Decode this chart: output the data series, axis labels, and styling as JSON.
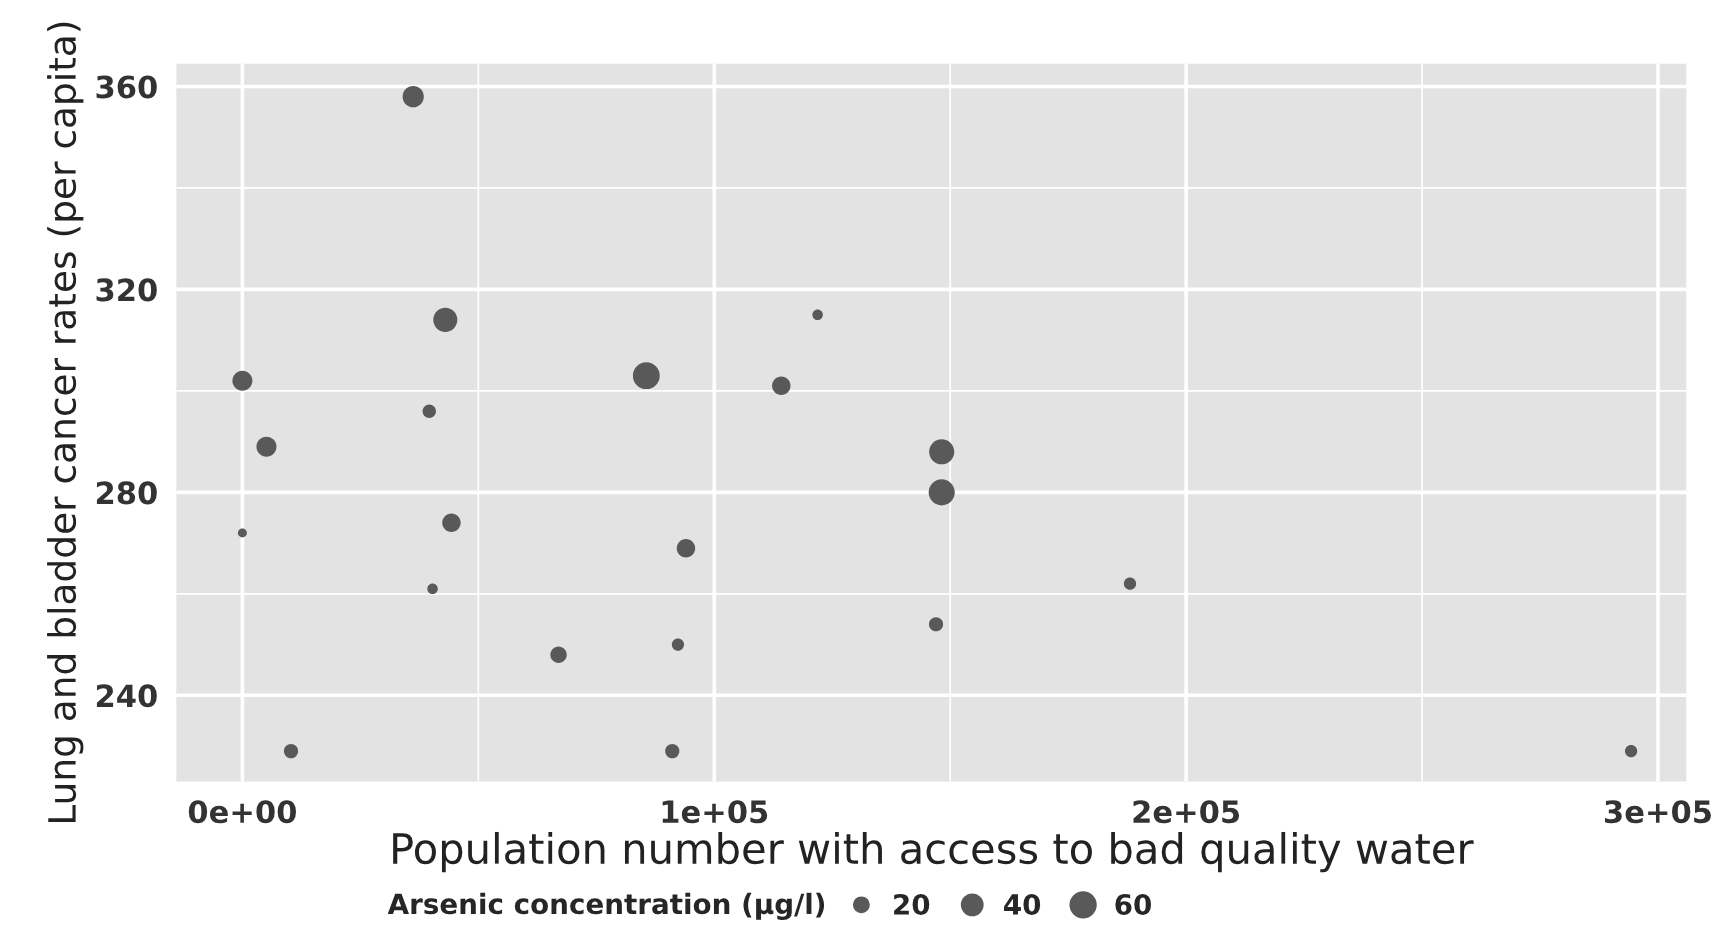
{
  "chart_data": {
    "type": "bubble",
    "xlabel": "Population number with access to bad quality water",
    "ylabel": "Lung and bladder cancer rates (per capita)",
    "legend_title": "Arsenic concentration (µg/l)",
    "x": [
      36200,
      43000,
      0,
      5100,
      39600,
      0,
      44300,
      40300,
      67000,
      94000,
      92300,
      85600,
      91100,
      10300,
      121900,
      114200,
      148200,
      148200,
      188100,
      147000,
      294300
    ],
    "series": [
      {
        "color": "#595959",
        "values": [
          358,
          314,
          302,
          289,
          296,
          272,
          274,
          261,
          248,
          269,
          250,
          303,
          229,
          229,
          315,
          301,
          288,
          280,
          262,
          254,
          229
        ],
        "sizes": [
          45,
          58,
          40,
          40,
          18,
          8,
          34,
          11,
          27,
          34,
          15,
          72,
          20,
          20,
          11,
          34,
          63,
          68,
          15,
          20,
          15
        ]
      }
    ],
    "size_legend": [
      20,
      40,
      60
    ],
    "xlim": [
      -14000,
      306000
    ],
    "ylim": [
      223,
      364.5
    ],
    "xticks": [
      {
        "value": 0,
        "label": "0e+00"
      },
      {
        "value": 100000,
        "label": "1e+05"
      },
      {
        "value": 200000,
        "label": "2e+05"
      },
      {
        "value": 300000,
        "label": "3e+05"
      }
    ],
    "yticks": [
      240,
      280,
      320,
      360
    ],
    "grid": true,
    "marker": "circle"
  }
}
